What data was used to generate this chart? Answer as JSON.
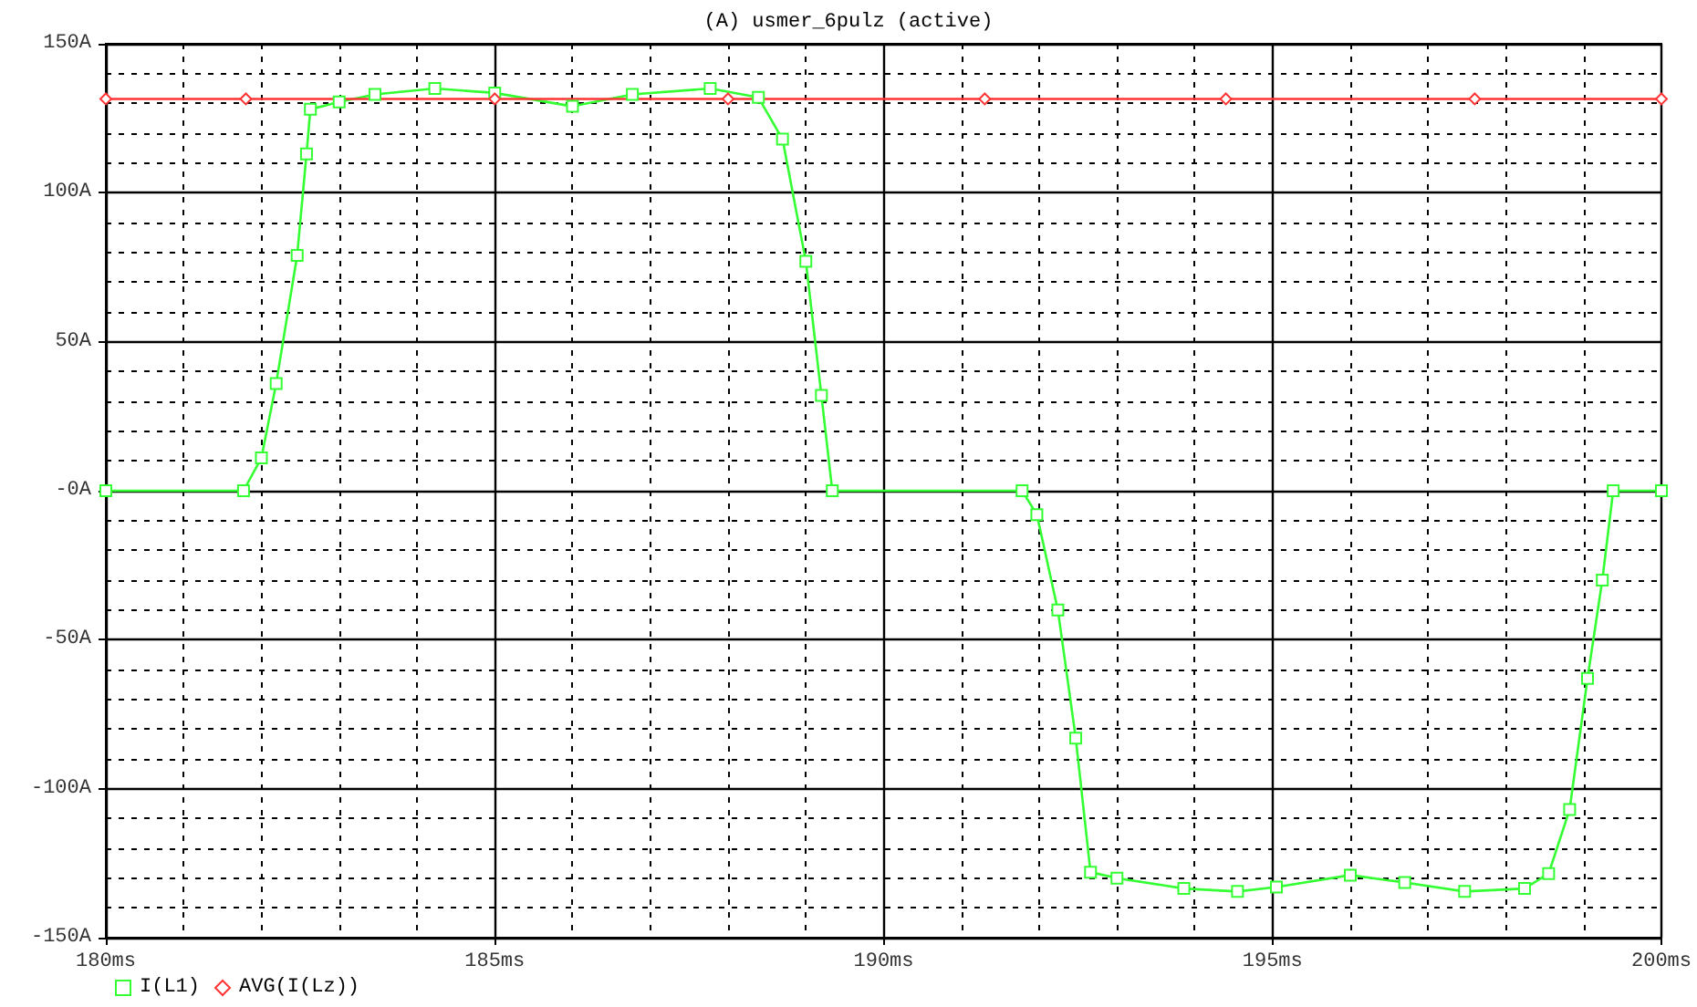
{
  "chart_data": {
    "type": "line",
    "title": "(A) usmer_6pulz (active)",
    "x": [
      180,
      181.77,
      182.0,
      182.19,
      182.46,
      182.58,
      182.63,
      183.0,
      183.46,
      184.23,
      185.0,
      186.0,
      186.77,
      187.77,
      188.39,
      188.7,
      189.0,
      189.2,
      189.34,
      191.78,
      191.97,
      192.24,
      192.47,
      192.66,
      193.0,
      193.86,
      194.55,
      195.05,
      196.0,
      196.7,
      197.47,
      198.24,
      198.55,
      198.82,
      199.05,
      199.24,
      199.38,
      200
    ],
    "series": [
      {
        "name": "I(L1)",
        "color": "#33ff33",
        "marker": "square",
        "values": [
          0,
          0,
          11,
          36,
          79,
          113,
          128,
          130.5,
          133,
          135,
          133.5,
          129,
          133,
          135,
          132,
          118,
          77,
          32,
          0,
          0,
          -8,
          -40,
          -83,
          -128,
          -130,
          -133.5,
          -134.5,
          -133,
          -129,
          -131.5,
          -134.5,
          -133.5,
          -128.5,
          -107,
          -63,
          -30,
          0,
          0
        ]
      },
      {
        "name": "AVG(I(Lz))",
        "color": "#ff3333",
        "marker": "diamond",
        "x": [
          180,
          181.8,
          185.0,
          188.0,
          191.3,
          194.4,
          197.6,
          200
        ],
        "values": [
          131.5,
          131.5,
          131.5,
          131.5,
          131.5,
          131.5,
          131.5,
          131.5
        ]
      }
    ],
    "xlim": [
      180,
      200
    ],
    "xticks": [
      {
        "value": 180,
        "label": "180ms"
      },
      {
        "value": 185,
        "label": "185ms"
      },
      {
        "value": 190,
        "label": "190ms"
      },
      {
        "value": 195,
        "label": "195ms"
      },
      {
        "value": 200,
        "label": "200ms"
      }
    ],
    "ylim": [
      -150,
      150
    ],
    "yticks": [
      {
        "value": -150,
        "label": "-150A"
      },
      {
        "value": -100,
        "label": "-100A"
      },
      {
        "value": -50,
        "label": "-50A"
      },
      {
        "value": 0,
        "label": "-0A"
      },
      {
        "value": 50,
        "label": "50A"
      },
      {
        "value": 100,
        "label": "100A"
      },
      {
        "value": 150,
        "label": "150A"
      }
    ],
    "grid": true,
    "legend": "bottom left",
    "line_style": "solid"
  }
}
